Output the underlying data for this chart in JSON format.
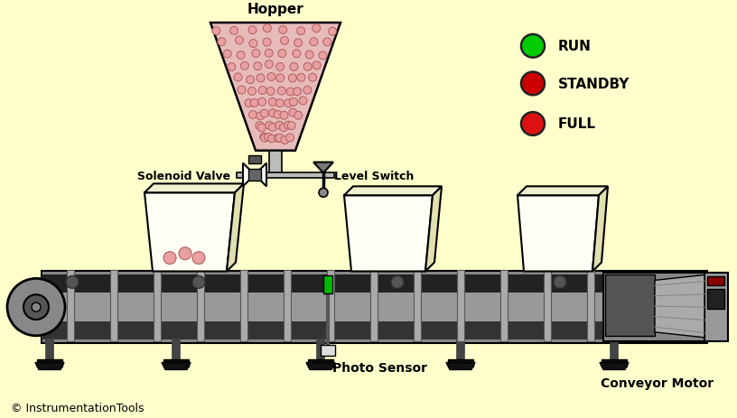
{
  "bg_color": "#FFFFCC",
  "hopper_label": "Hopper",
  "solenoid_label": "Solenoid Valve",
  "level_label": "Level Switch",
  "photo_label": "Photo Sensor",
  "motor_label": "Conveyor Motor",
  "copyright": "© InstrumentationTools",
  "indicators": [
    {
      "label": "RUN",
      "color": "#00CC00"
    },
    {
      "label": "STANDBY",
      "color": "#CC0000"
    },
    {
      "label": "FULL",
      "color": "#DD1111"
    }
  ],
  "item_color": "#E8A0A0",
  "item_outline": "#B06060",
  "hopper_face": "#E8BBBB",
  "box_face": "#FFFFF5",
  "box_top": "#F0F0D0",
  "box_right": "#E0E0B0"
}
